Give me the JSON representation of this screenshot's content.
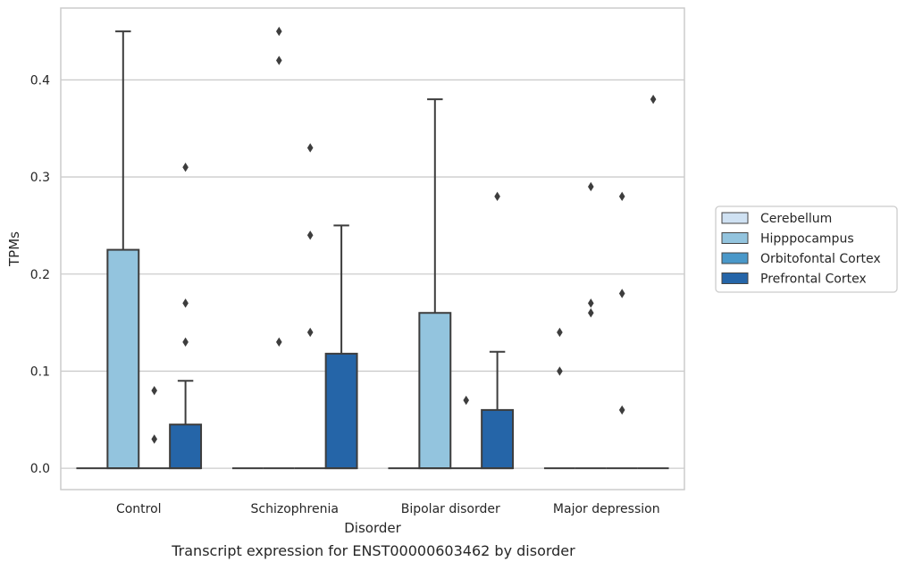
{
  "chart_data": {
    "type": "box",
    "title": "",
    "caption": "Transcript expression for ENST00000603462 by disorder",
    "xlabel": "Disorder",
    "ylabel": "TPMs",
    "ylim": [
      -0.022,
      0.474
    ],
    "yticks": [
      0.0,
      0.1,
      0.2,
      0.3,
      0.4
    ],
    "ytick_labels": [
      "0.0",
      "0.1",
      "0.2",
      "0.3",
      "0.4"
    ],
    "grid": "horizontal",
    "legend_position": "right",
    "categories": [
      "Control",
      "Schizophrenia",
      "Bipolar disorder",
      "Major depression"
    ],
    "series": [
      {
        "name": "Cerebellum",
        "color": "#cfe1f2",
        "boxes": [
          {
            "q1": 0,
            "median": 0,
            "q3": 0,
            "whisker_low": 0,
            "whisker_high": 0,
            "outliers": []
          },
          {
            "q1": 0,
            "median": 0,
            "q3": 0,
            "whisker_low": 0,
            "whisker_high": 0,
            "outliers": []
          },
          {
            "q1": 0,
            "median": 0,
            "q3": 0,
            "whisker_low": 0,
            "whisker_high": 0,
            "outliers": []
          },
          {
            "q1": 0,
            "median": 0,
            "q3": 0,
            "whisker_low": 0,
            "whisker_high": 0,
            "outliers": [
              0.1,
              0.14
            ]
          }
        ]
      },
      {
        "name": "Hipppocampus",
        "color": "#93c4de",
        "boxes": [
          {
            "q1": 0,
            "median": 0,
            "q3": 0.225,
            "whisker_low": 0,
            "whisker_high": 0.45,
            "outliers": []
          },
          {
            "q1": 0,
            "median": 0,
            "q3": 0,
            "whisker_low": 0,
            "whisker_high": 0,
            "outliers": [
              0.13,
              0.42,
              0.45
            ]
          },
          {
            "q1": 0,
            "median": 0,
            "q3": 0.16,
            "whisker_low": 0,
            "whisker_high": 0.38,
            "outliers": []
          },
          {
            "q1": 0,
            "median": 0,
            "q3": 0,
            "whisker_low": 0,
            "whisker_high": 0,
            "outliers": [
              0.16,
              0.17,
              0.29
            ]
          }
        ]
      },
      {
        "name": "Orbitofontal Cortex",
        "color": "#4a98c9",
        "boxes": [
          {
            "q1": 0,
            "median": 0,
            "q3": 0,
            "whisker_low": 0,
            "whisker_high": 0,
            "outliers": [
              0.03,
              0.08
            ]
          },
          {
            "q1": 0,
            "median": 0,
            "q3": 0,
            "whisker_low": 0,
            "whisker_high": 0,
            "outliers": [
              0.14,
              0.24,
              0.33
            ]
          },
          {
            "q1": 0,
            "median": 0,
            "q3": 0,
            "whisker_low": 0,
            "whisker_high": 0,
            "outliers": [
              0.07
            ]
          },
          {
            "q1": 0,
            "median": 0,
            "q3": 0,
            "whisker_low": 0,
            "whisker_high": 0,
            "outliers": [
              0.06,
              0.18,
              0.28
            ]
          }
        ]
      },
      {
        "name": "Prefrontal Cortex",
        "color": "#2565a8",
        "boxes": [
          {
            "q1": 0,
            "median": 0,
            "q3": 0.045,
            "whisker_low": 0,
            "whisker_high": 0.09,
            "outliers": [
              0.13,
              0.17,
              0.31
            ]
          },
          {
            "q1": 0,
            "median": 0,
            "q3": 0.118,
            "whisker_low": 0,
            "whisker_high": 0.25,
            "outliers": []
          },
          {
            "q1": 0,
            "median": 0,
            "q3": 0.06,
            "whisker_low": 0,
            "whisker_high": 0.12,
            "outliers": [
              0.28
            ]
          },
          {
            "q1": 0,
            "median": 0,
            "q3": 0,
            "whisker_low": 0,
            "whisker_high": 0,
            "outliers": [
              0.38
            ]
          }
        ]
      }
    ]
  }
}
